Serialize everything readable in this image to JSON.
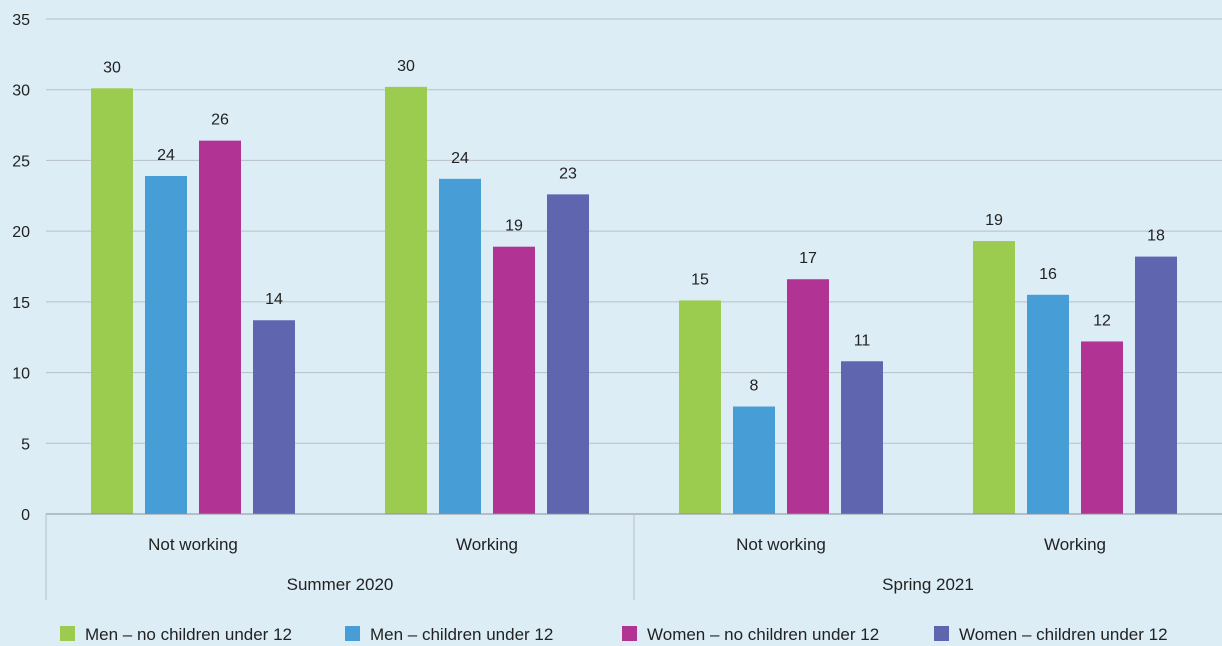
{
  "chart_data": {
    "type": "bar",
    "title": "",
    "xlabel": "",
    "ylabel": "",
    "ylim": [
      0,
      35
    ],
    "yticks": [
      0,
      5,
      10,
      15,
      20,
      25,
      30,
      35
    ],
    "grid": true,
    "legend_position": "bottom",
    "groups": [
      {
        "label": "Summer 2020",
        "categories": [
          "Not working",
          "Working"
        ]
      },
      {
        "label": "Spring 2021",
        "categories": [
          "Not working",
          "Working"
        ]
      }
    ],
    "series": [
      {
        "name": "Men – no children under 12",
        "color": "#9bcb4f",
        "values": [
          30.1,
          30.2,
          15.1,
          19.3
        ],
        "labels": [
          "30",
          "30",
          "15",
          "19"
        ]
      },
      {
        "name": "Men – children under 12",
        "color": "#479dd6",
        "values": [
          23.9,
          23.7,
          7.6,
          15.5
        ],
        "labels": [
          "24",
          "24",
          "8",
          "16"
        ]
      },
      {
        "name": "Women – no children under 12",
        "color": "#b13394",
        "values": [
          26.4,
          18.9,
          16.6,
          12.2
        ],
        "labels": [
          "26",
          "19",
          "17",
          "12"
        ]
      },
      {
        "name": "Women – children under 12",
        "color": "#6065b0",
        "values": [
          13.7,
          22.6,
          10.8,
          18.2
        ],
        "labels": [
          "14",
          "23",
          "11",
          "18"
        ]
      }
    ]
  }
}
